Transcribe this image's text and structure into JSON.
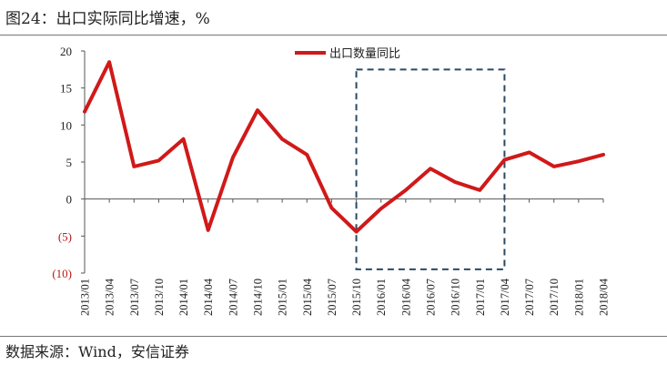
{
  "figure": {
    "title": "图24：出口实际同比增速，%",
    "source": "数据来源：Wind，安信证券"
  },
  "colors": {
    "series": "#d01919",
    "negative_label": "#b51a1a",
    "highlight_box": "#2b4a63"
  },
  "chart_data": {
    "type": "line",
    "title": "",
    "xlabel": "",
    "ylabel": "",
    "ylim": [
      -10,
      20
    ],
    "yticks": [
      20,
      15,
      10,
      5,
      0,
      -5,
      -10
    ],
    "ytick_labels": [
      "20",
      "15",
      "10",
      "5",
      "0",
      "(5)",
      "(10)"
    ],
    "x": [
      "2013/01",
      "2013/04",
      "2013/07",
      "2013/10",
      "2014/01",
      "2014/04",
      "2014/07",
      "2014/10",
      "2015/01",
      "2015/04",
      "2015/07",
      "2015/10",
      "2016/01",
      "2016/04",
      "2016/07",
      "2016/10",
      "2017/01",
      "2017/04",
      "2017/07",
      "2017/10",
      "2018/01",
      "2018/04"
    ],
    "series": [
      {
        "name": "出口数量同比",
        "values": [
          11.8,
          18.5,
          4.4,
          5.2,
          8.1,
          -4.2,
          5.6,
          12.0,
          8.1,
          6.0,
          -1.2,
          -4.4,
          -1.3,
          1.2,
          4.1,
          2.3,
          1.2,
          5.3,
          6.3,
          4.4,
          5.1,
          6.0
        ]
      }
    ],
    "highlight": {
      "x_start": "2015/10",
      "x_end": "2017/04",
      "y_from": -9.5,
      "y_to": 17.5
    },
    "grid": false,
    "legend": "top-center"
  }
}
